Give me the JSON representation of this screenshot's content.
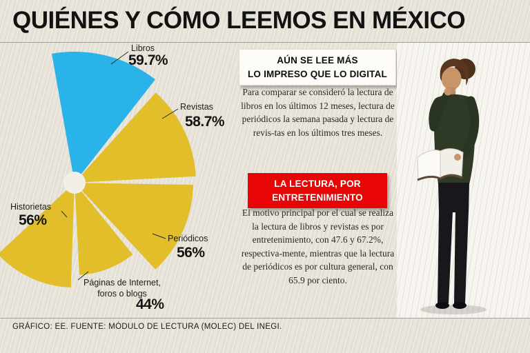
{
  "header": {
    "title": "QUIÉNES Y CÓMO LEEMOS EN MÉXICO"
  },
  "footer": {
    "source": "GRÁFICO: EE. FUENTE: MÓDULO DE LECTURA (MOLEC) DEL INEGI."
  },
  "info_panel": {
    "callout1": {
      "line1": "AÚN SE LEE MÁS",
      "line2": "LO IMPRESO QUE LO DIGITAL"
    },
    "paragraph1": "Para comparar se consideró la lectura de libros en los últimos 12 meses, lectura de periódicos la semana pasada y lectura de revis-tas en los últimos tres meses.",
    "callout2": {
      "line1": "LA LECTURA, POR",
      "line2": "ENTRETENIMIENTO"
    },
    "paragraph2": "El motivo principal por el cual se realiza la lectura de libros y revistas es por entretenimiento, con 47.6 y 67.2%, respectiva-mente, mientras que la lectura de periódicos es por cultura general, con 65.9 por ciento."
  },
  "colors": {
    "background": "#e8e3d9",
    "blue": "#2ab3e8",
    "yellow": "#e2be2b",
    "red": "#e80505"
  },
  "chart_data": {
    "type": "pie",
    "variant": "rose-fan",
    "title": "QUIÉNES Y CÓMO LEEMOS EN MÉXICO",
    "unit": "%",
    "categories": [
      "Libros",
      "Revistas",
      "Periódicos",
      "Páginas de Internet, foros o blogs",
      "Historietas"
    ],
    "values": [
      59.7,
      58.7,
      56,
      44,
      56
    ],
    "center": [
      108,
      203
    ],
    "hole_radius": 16,
    "segments": [
      {
        "label": "Libros",
        "value": 59.7,
        "display": "59.7%",
        "color": "#2ab3e8",
        "a0": -100,
        "a1": -52,
        "r": 190
      },
      {
        "label": "Revistas",
        "value": 58.7,
        "display": "58.7%",
        "color": "#e2be2b",
        "a0": -48,
        "a1": -3,
        "r": 176
      },
      {
        "label": "Periódicos",
        "value": 56,
        "display": "56%",
        "color": "#e2be2b",
        "a0": 1,
        "a1": 47,
        "r": 172
      },
      {
        "label": "Páginas de Internet, foros o blogs",
        "value": 44,
        "display": "44%",
        "color": "#e2be2b",
        "a0": 51,
        "a1": 87,
        "r": 134
      },
      {
        "label": "Historietas",
        "value": 56,
        "display": "56%",
        "color": "#e2be2b",
        "a0": 92,
        "a1": 137,
        "r": 152
      }
    ]
  }
}
